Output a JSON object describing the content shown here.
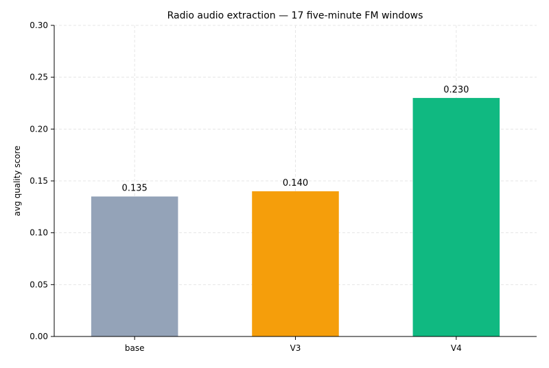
{
  "chart_data": {
    "type": "bar",
    "title": "Radio audio extraction — 17 five-minute FM windows",
    "xlabel": "",
    "ylabel": "avg quality score",
    "categories": [
      "base",
      "V3",
      "V4"
    ],
    "values": [
      0.135,
      0.14,
      0.23
    ],
    "value_labels": [
      "0.135",
      "0.140",
      "0.230"
    ],
    "colors": [
      "#94a3b8",
      "#f59e0b",
      "#10b981"
    ],
    "ylim": [
      0,
      0.3
    ],
    "yticks": [
      0,
      0.05,
      0.1,
      0.15,
      0.2,
      0.25,
      0.3
    ],
    "ytick_labels": [
      "0.00",
      "0.05",
      "0.10",
      "0.15",
      "0.20",
      "0.25",
      "0.30"
    ],
    "grid": true,
    "legend": "none"
  }
}
